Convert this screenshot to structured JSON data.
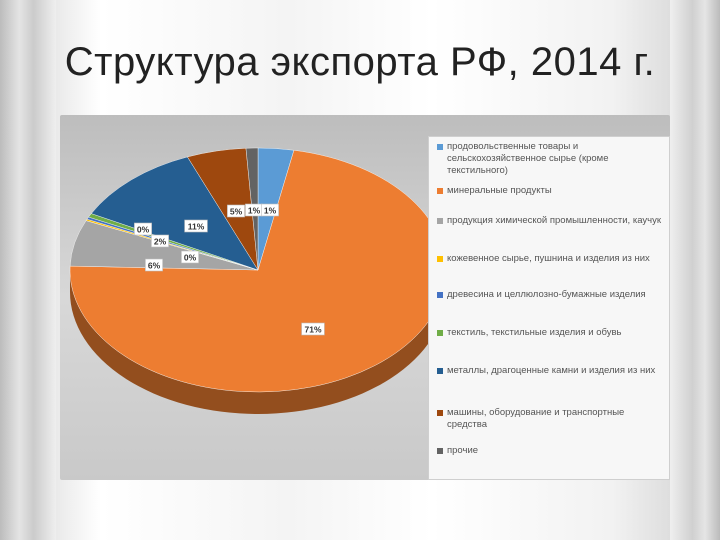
{
  "slide": {
    "title": "Структура экспорта РФ, 2014 г."
  },
  "chart_data": {
    "type": "pie",
    "title": "",
    "legend_position": "right",
    "series": [
      {
        "name": "продовольственные товары и сельскохозяйственное сырье (кроме текстильного)",
        "value": 3,
        "label": "3%",
        "color": "#5b9bd5"
      },
      {
        "name": "минеральные продукты",
        "value": 71,
        "label": "71%",
        "color": "#ed7d31"
      },
      {
        "name": "продукция химической промышленности, каучук",
        "value": 6,
        "label": "6%",
        "color": "#a5a5a5"
      },
      {
        "name": "кожевенное сырье, пушнина и изделия из них",
        "value": 0.2,
        "label": "0%",
        "color": "#ffc000"
      },
      {
        "name": "древесина и целлюлозно-бумажные изделия",
        "value": 0.3,
        "label": "0%",
        "color": "#4472c4"
      },
      {
        "name": "текстиль, текстильные изделия и обувь",
        "value": 0.5,
        "label": "0%",
        "color": "#70ad47"
      },
      {
        "name": "металлы, драгоценные камни и изделия из них",
        "value": 11,
        "label": "11%",
        "color": "#255e91"
      },
      {
        "name": "машины, оборудование и транспортные средства",
        "value": 5,
        "label": "5%",
        "color": "#9e480e"
      },
      {
        "name": "прочие",
        "value": 1,
        "label": "1%",
        "color": "#636363"
      }
    ],
    "extra_labels": [
      "2%",
      "1%"
    ]
  }
}
